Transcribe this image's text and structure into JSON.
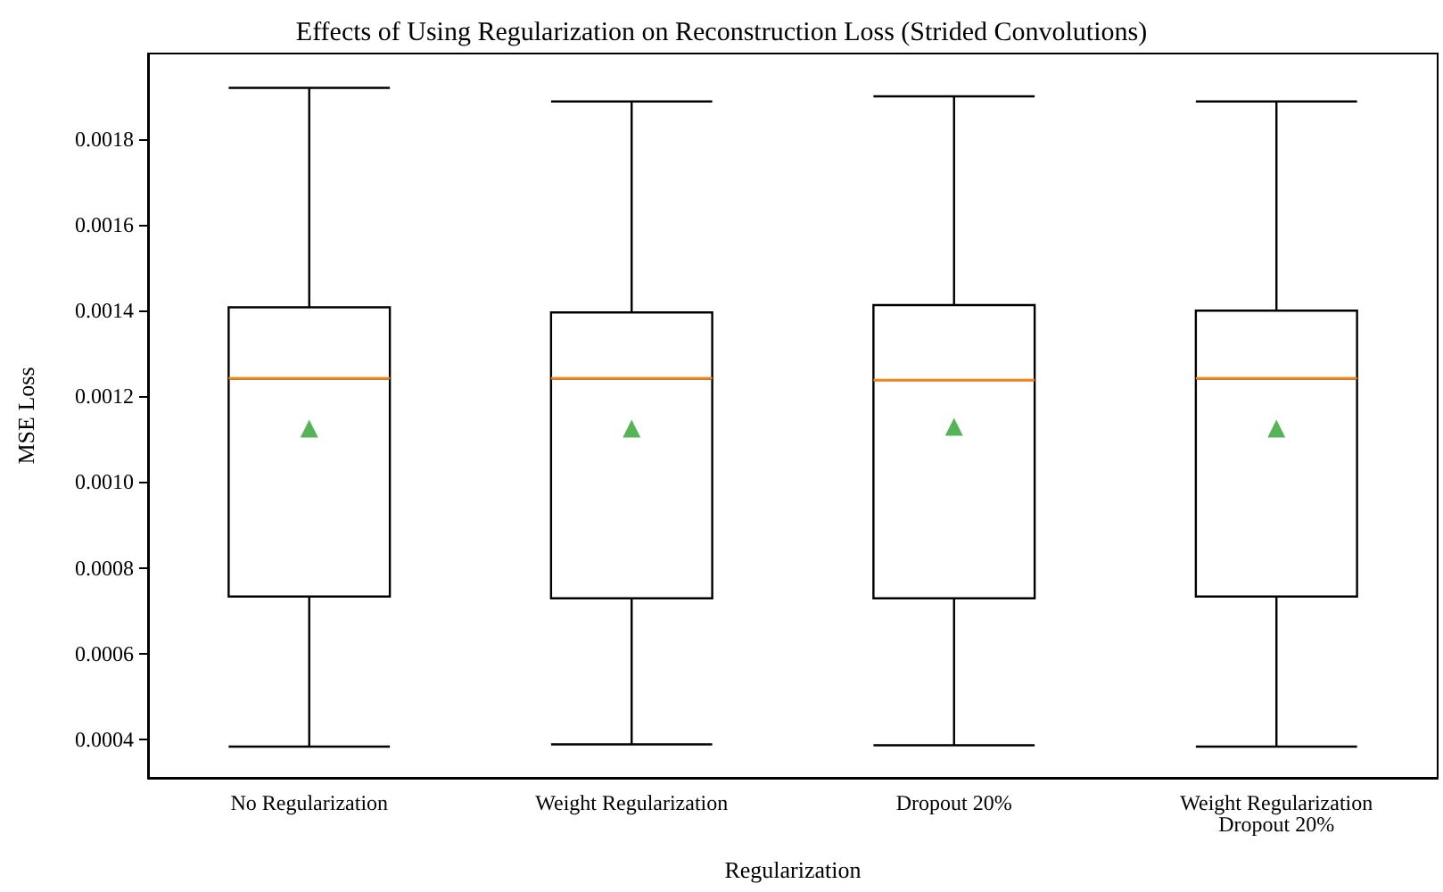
{
  "chart_data": {
    "type": "box",
    "title": "Effects of Using Regularization on Reconstruction Loss (Strided Convolutions)",
    "xlabel": "Regularization",
    "ylabel": "MSE Loss",
    "categories": [
      "No Regularization",
      "Weight Regularization",
      "Dropout 20%",
      "Weight Regularization\nDropout 20%"
    ],
    "boxes": [
      {
        "low": 0.000383,
        "q1": 0.000733,
        "median": 0.001242,
        "q3": 0.001408,
        "high": 0.00192,
        "mean": 0.001125
      },
      {
        "low": 0.000388,
        "q1": 0.000729,
        "median": 0.001242,
        "q3": 0.001396,
        "high": 0.001888,
        "mean": 0.001125
      },
      {
        "low": 0.000386,
        "q1": 0.000729,
        "median": 0.001238,
        "q3": 0.001413,
        "high": 0.0019,
        "mean": 0.001129
      },
      {
        "low": 0.000383,
        "q1": 0.000733,
        "median": 0.001242,
        "q3": 0.0014,
        "high": 0.001888,
        "mean": 0.001125
      }
    ],
    "color": "#000000",
    "marker": "triangle",
    "ylim": [
      0.00031,
      0.002
    ],
    "yticks": [
      0.0004,
      0.0006,
      0.0008,
      {
        "value": 0.001,
        "label": "0.0010"
      },
      0.0012,
      0.0014,
      0.0016,
      0.0018
    ]
  }
}
